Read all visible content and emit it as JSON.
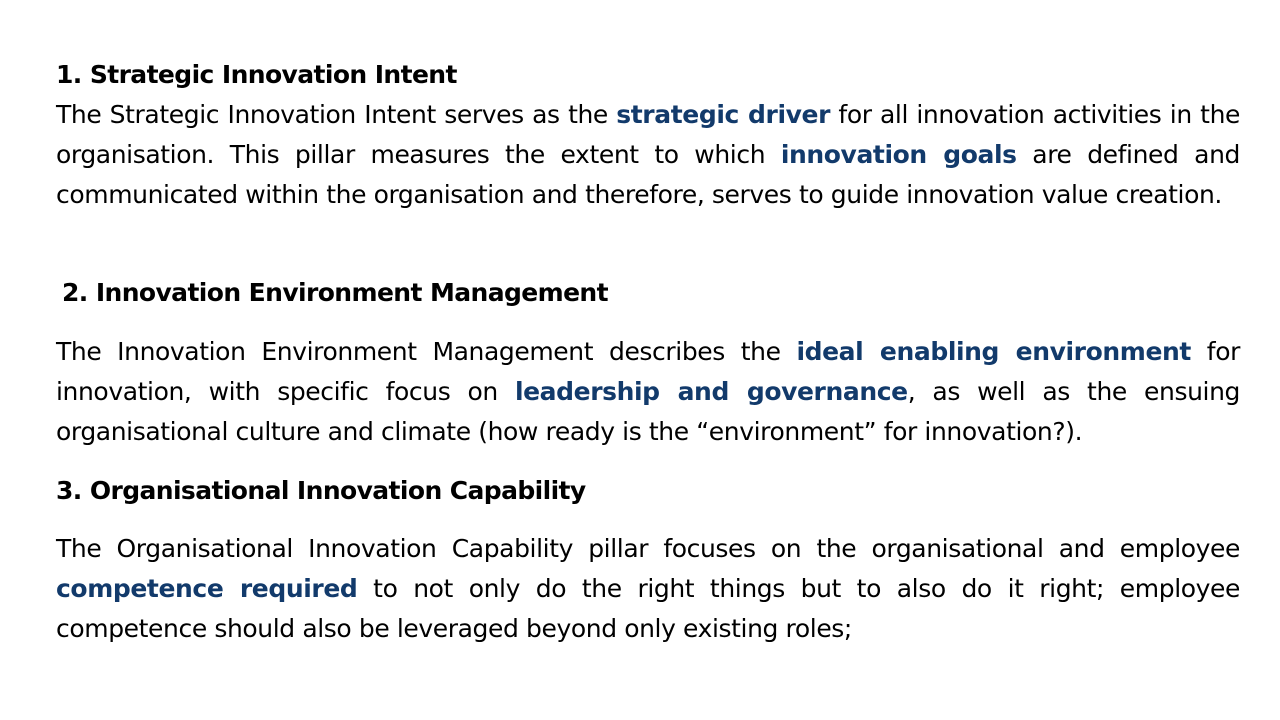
{
  "sections": [
    {
      "heading_num": "1.",
      "heading_text": "Strategic Innovation Intent",
      "lead": " The Strategic Innovation Intent serves as the ",
      "hl1": "strategic driver",
      "mid1": " for all innovation activities in the organisation. This pillar measures the extent to which ",
      "hl2": "innovation goals",
      "tail": " are defined and communicated within the organisation and therefore, serves to guide innovation value creation."
    },
    {
      "heading_num": "2.",
      "heading_text": "Innovation Environment Management",
      "lead": "The Innovation Environment Management describes the ",
      "hl1": "ideal enabling environment",
      "mid1": " for innovation, with specific focus on ",
      "hl2": "leadership and governance",
      "tail": ", as well as the ensuing organisational culture and climate (how ready is the “environment” for innovation?)."
    },
    {
      "heading_num": "3.",
      "heading_text": "Organisational Innovation Capability",
      "lead": "  The Organisational Innovation Capability pillar focuses on the organisational and employee ",
      "hl1": "competence required",
      "tail": " to not only do the right things but to also do it right; employee competence should also be leveraged beyond only existing roles;"
    }
  ],
  "colors": {
    "highlight": "#123a6b",
    "text": "#000000",
    "background": "#ffffff"
  }
}
